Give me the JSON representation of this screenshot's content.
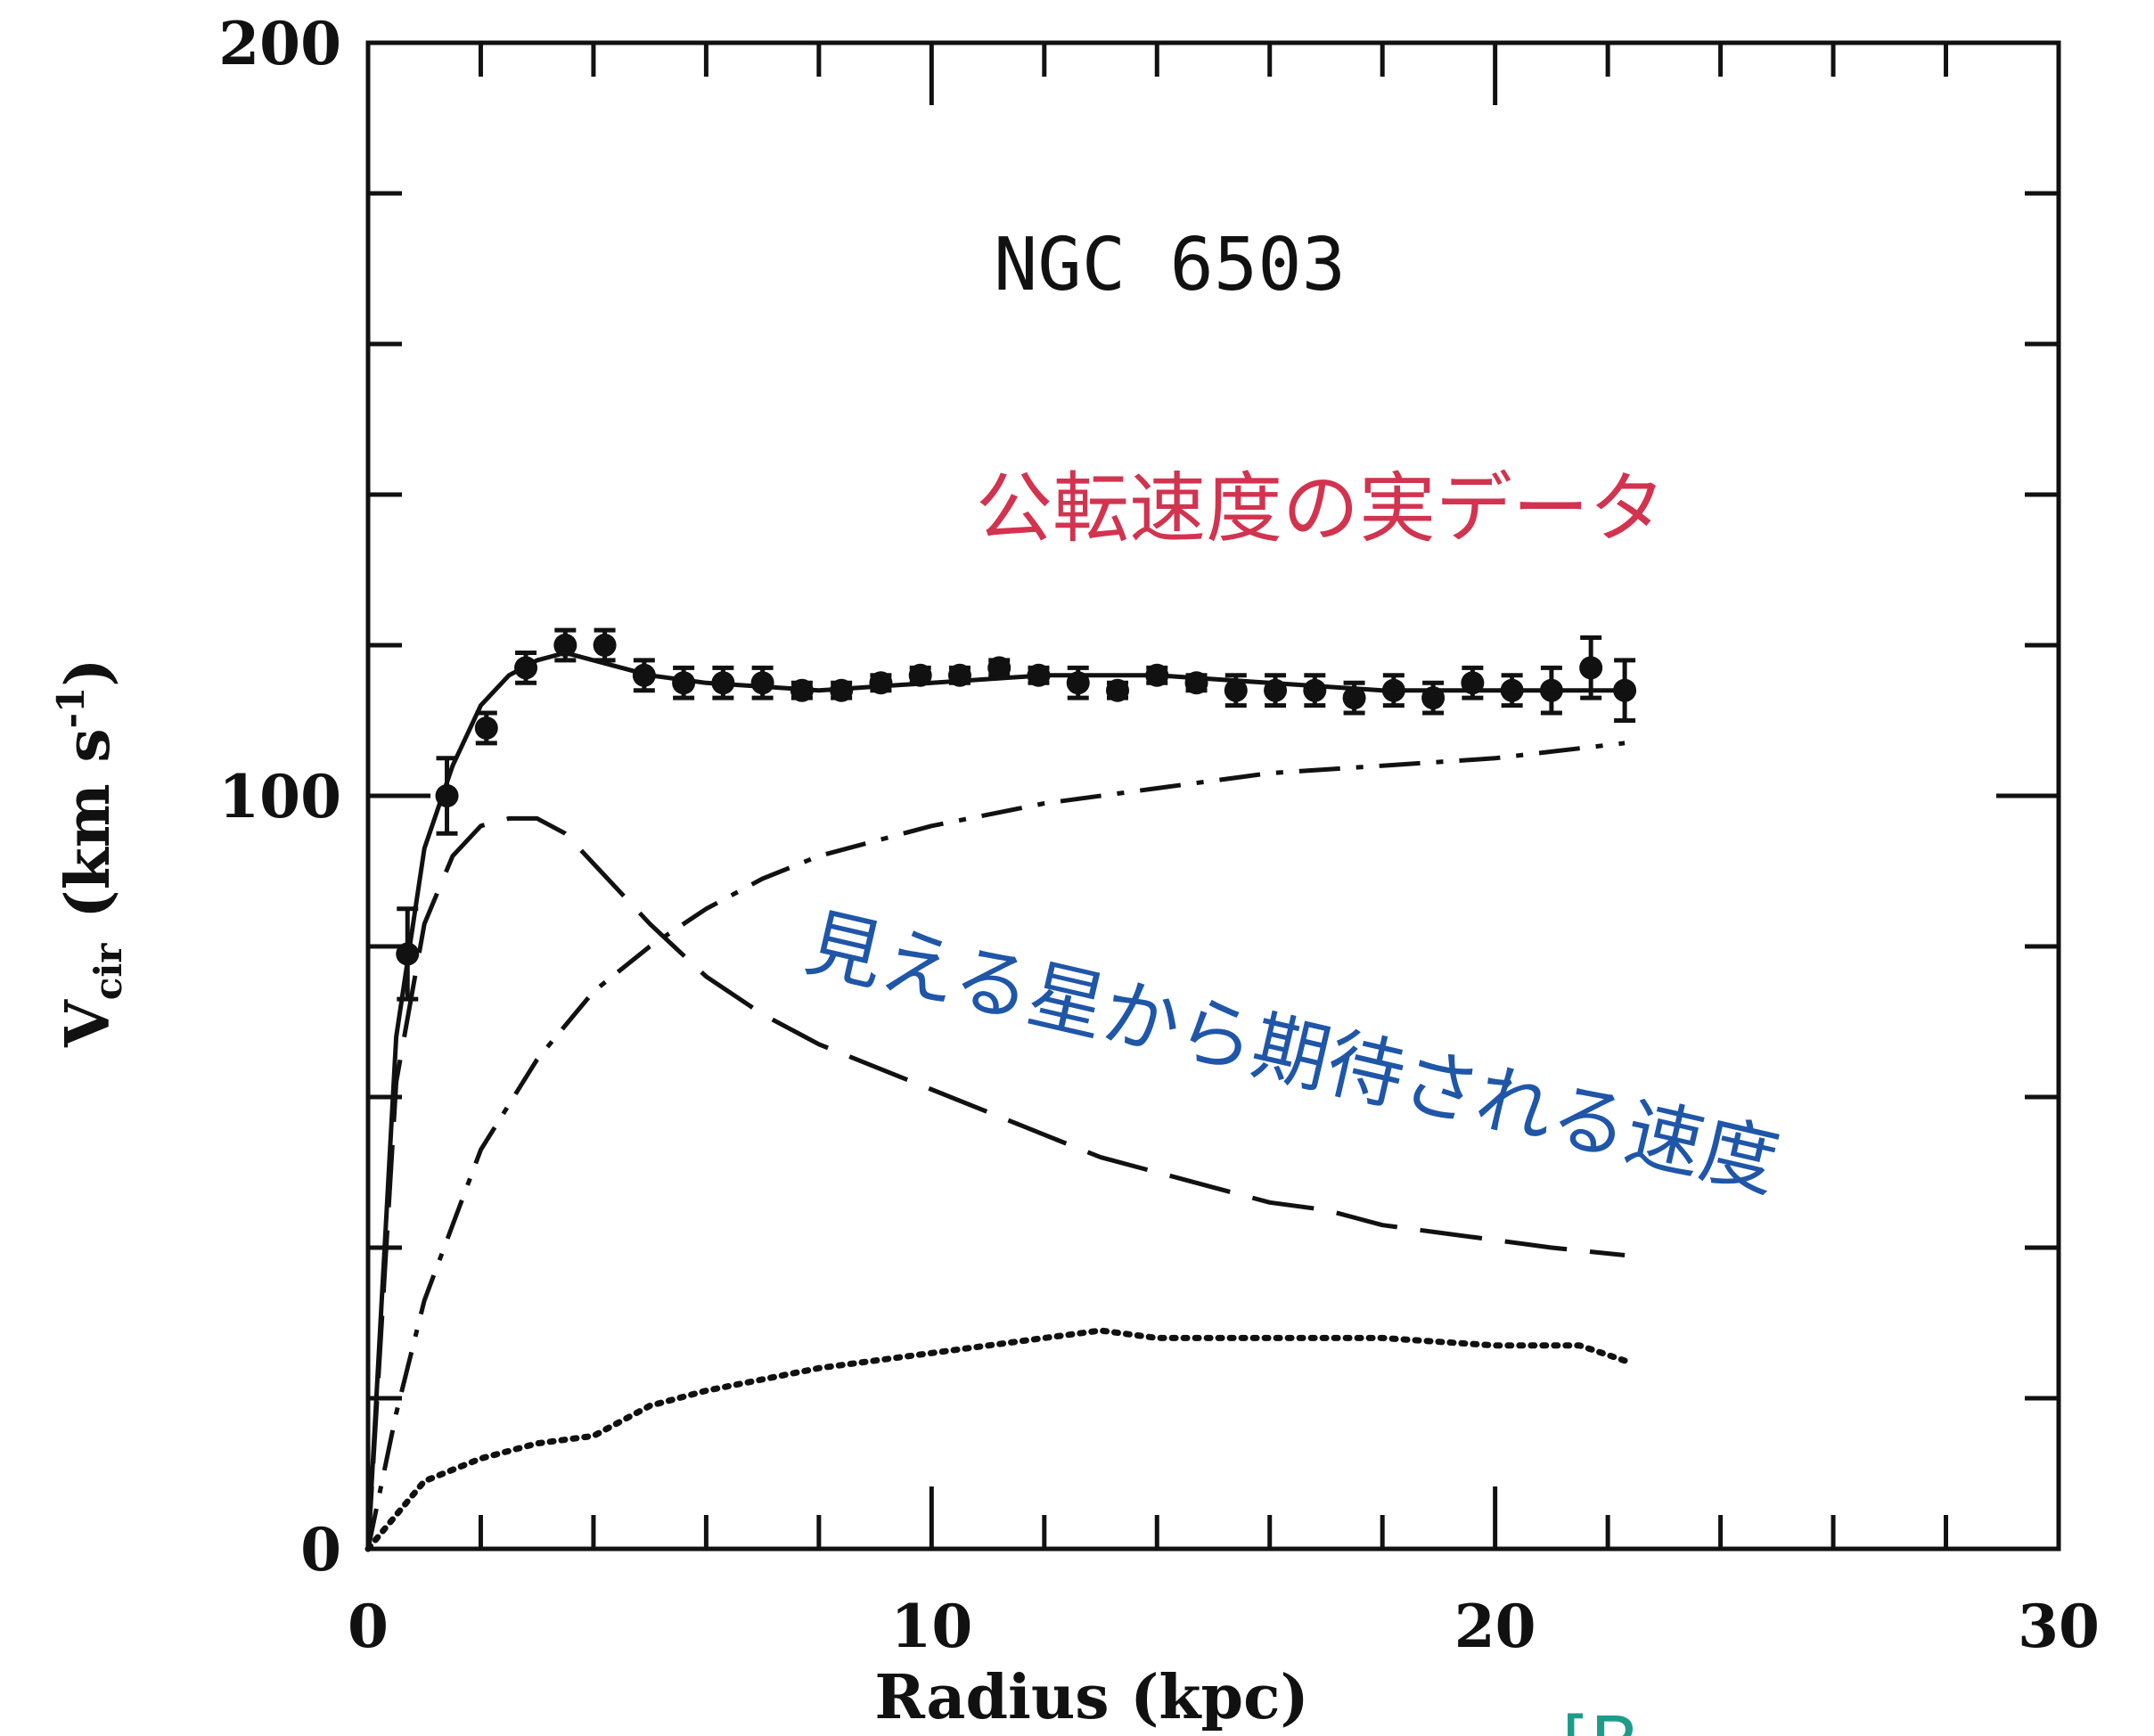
{
  "chart_data": {
    "type": "line",
    "title": "NGC 6503",
    "xlabel": "Radius (kpc)",
    "ylabel": "V",
    "ylabel_sub": "cir",
    "ylabel_unit": "(km s",
    "ylabel_exp": "-1",
    "ylabel_close": ")",
    "xlim": [
      0,
      30
    ],
    "ylim": [
      0,
      200
    ],
    "x_ticks": [
      "0",
      "10",
      "20",
      "30"
    ],
    "y_ticks": [
      "0",
      "100",
      "200"
    ],
    "grid": false,
    "series": [
      {
        "kind": "observed",
        "style": "points-with-errorbars",
        "x": [
          0.7,
          1.4,
          2.1,
          2.8,
          3.5,
          4.2,
          4.9,
          5.6,
          6.3,
          7.0,
          7.7,
          8.4,
          9.1,
          9.8,
          10.5,
          11.2,
          11.9,
          12.6,
          13.3,
          14.0,
          14.7,
          15.4,
          16.1,
          16.8,
          17.5,
          18.2,
          18.9,
          19.6,
          20.3,
          21.0,
          21.7,
          22.3
        ],
        "y": [
          79,
          100,
          109,
          117,
          120,
          120,
          116,
          115,
          115,
          115,
          114,
          114,
          115,
          116,
          116,
          117,
          116,
          115,
          114,
          116,
          115,
          114,
          114,
          114,
          113,
          114,
          113,
          115,
          114,
          114,
          117,
          114
        ],
        "err": [
          6,
          5,
          2,
          2,
          2,
          2,
          2,
          2,
          2,
          2,
          1,
          1,
          1,
          1,
          1,
          1,
          1,
          2,
          1,
          1,
          1,
          2,
          2,
          2,
          2,
          2,
          2,
          2,
          2,
          3,
          4,
          4
        ]
      },
      {
        "kind": "total-model",
        "style": "solid",
        "x": [
          0,
          0.5,
          1.0,
          1.5,
          2.0,
          2.5,
          3.0,
          3.5,
          4.0,
          5.0,
          6.0,
          8.0,
          10.0,
          12.0,
          14.0,
          16.0,
          18.0,
          20.0,
          22.3
        ],
        "y": [
          0,
          68,
          93,
          104,
          112,
          116,
          118,
          119,
          118,
          116,
          115,
          114,
          115,
          116,
          116,
          115,
          114,
          114,
          114
        ]
      },
      {
        "kind": "visible-stars-disk",
        "style": "long-dash",
        "x": [
          0,
          0.5,
          1.0,
          1.5,
          2.0,
          2.5,
          3.0,
          3.5,
          4.0,
          5.0,
          6.0,
          7.0,
          8.0,
          9.0,
          10.0,
          11.0,
          12.0,
          13.0,
          14.0,
          15.0,
          16.0,
          17.0,
          18.0,
          19.0,
          20.0,
          21.0,
          22.3
        ],
        "y": [
          0,
          62,
          83,
          92,
          96,
          97,
          97,
          95,
          91,
          83,
          76,
          71,
          67,
          64,
          61,
          58,
          55,
          52,
          50,
          48,
          46,
          45,
          43,
          42,
          41,
          40,
          39
        ]
      },
      {
        "kind": "dark-halo",
        "style": "dash-dot",
        "x": [
          0,
          0.5,
          1.0,
          2.0,
          3.0,
          4.0,
          5.0,
          6.0,
          7.0,
          8.0,
          10.0,
          12.0,
          14.0,
          16.0,
          18.0,
          20.0,
          22.3
        ],
        "y": [
          0,
          18,
          33,
          53,
          65,
          74,
          80,
          85,
          89,
          92,
          96,
          99,
          101,
          103,
          104,
          105,
          107
        ]
      },
      {
        "kind": "gas",
        "style": "dotted",
        "x": [
          0,
          1.0,
          2.0,
          3.0,
          4.0,
          5.0,
          6.0,
          8.0,
          10.0,
          12.0,
          13.0,
          14.0,
          16.0,
          18.0,
          20.0,
          21.5,
          22.3
        ],
        "y": [
          0,
          9,
          12,
          14,
          15,
          19,
          21,
          24,
          26,
          28,
          29,
          28,
          28,
          28,
          27,
          27,
          25
        ]
      }
    ],
    "annotations": [
      {
        "text": "公転速度の実データ",
        "color": "#d2334f"
      },
      {
        "text": "見える星から期待される速度",
        "color": "#1f56a8"
      }
    ],
    "citation": "[B"
  }
}
